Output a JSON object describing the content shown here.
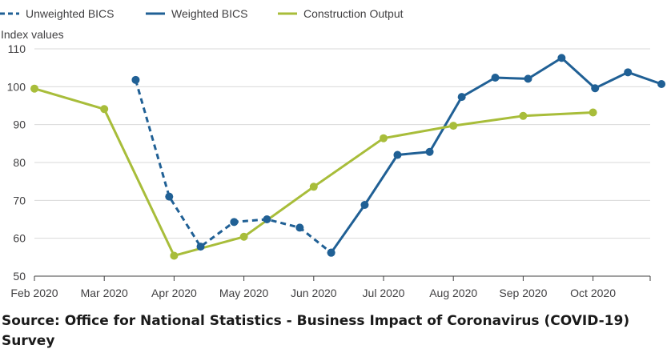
{
  "chart_data": {
    "type": "line",
    "ylabel": "Index values",
    "ylim": [
      50,
      110
    ],
    "yticks": [
      50,
      60,
      70,
      80,
      90,
      100,
      110
    ],
    "grid": true,
    "legend_position": "top-left",
    "x_tick_labels": [
      "Feb 2020",
      "Mar 2020",
      "Apr 2020",
      "May 2020",
      "Jun 2020",
      "Jul 2020",
      "Aug 2020",
      "Sep 2020",
      "Oct 2020"
    ],
    "series": [
      {
        "name": "Unweighted BICS",
        "color": "#206095",
        "style": "dashed",
        "points": [
          {
            "month": 1.45,
            "value": 101.8
          },
          {
            "month": 1.93,
            "value": 71.0
          },
          {
            "month": 2.38,
            "value": 57.8
          },
          {
            "month": 2.86,
            "value": 64.3
          },
          {
            "month": 3.33,
            "value": 65.0
          },
          {
            "month": 3.8,
            "value": 62.8
          },
          {
            "month": 4.25,
            "value": 56.2
          }
        ]
      },
      {
        "name": "Weighted BICS",
        "color": "#206095",
        "style": "solid",
        "points": [
          {
            "month": 4.25,
            "value": 56.2
          },
          {
            "month": 4.73,
            "value": 68.8
          },
          {
            "month": 5.2,
            "value": 82.0
          },
          {
            "month": 5.66,
            "value": 82.8
          },
          {
            "month": 6.12,
            "value": 97.3
          },
          {
            "month": 6.6,
            "value": 102.4
          },
          {
            "month": 7.07,
            "value": 102.1
          },
          {
            "month": 7.55,
            "value": 107.6
          },
          {
            "month": 8.03,
            "value": 99.6
          },
          {
            "month": 8.5,
            "value": 103.8
          },
          {
            "month": 8.98,
            "value": 100.7
          }
        ]
      },
      {
        "name": "Construction Output",
        "color": "#a8bd3a",
        "style": "solid",
        "points": [
          {
            "month": 0,
            "value": 99.5
          },
          {
            "month": 1,
            "value": 94.1
          },
          {
            "month": 2,
            "value": 55.4
          },
          {
            "month": 3,
            "value": 60.4
          },
          {
            "month": 4,
            "value": 73.6
          },
          {
            "month": 5,
            "value": 86.4
          },
          {
            "month": 6,
            "value": 89.7
          },
          {
            "month": 7,
            "value": 92.3
          },
          {
            "month": 8,
            "value": 93.2
          }
        ]
      }
    ]
  },
  "source_text": "Source: Office for National Statistics - Business Impact of Coronavirus (COVID-19) Survey"
}
